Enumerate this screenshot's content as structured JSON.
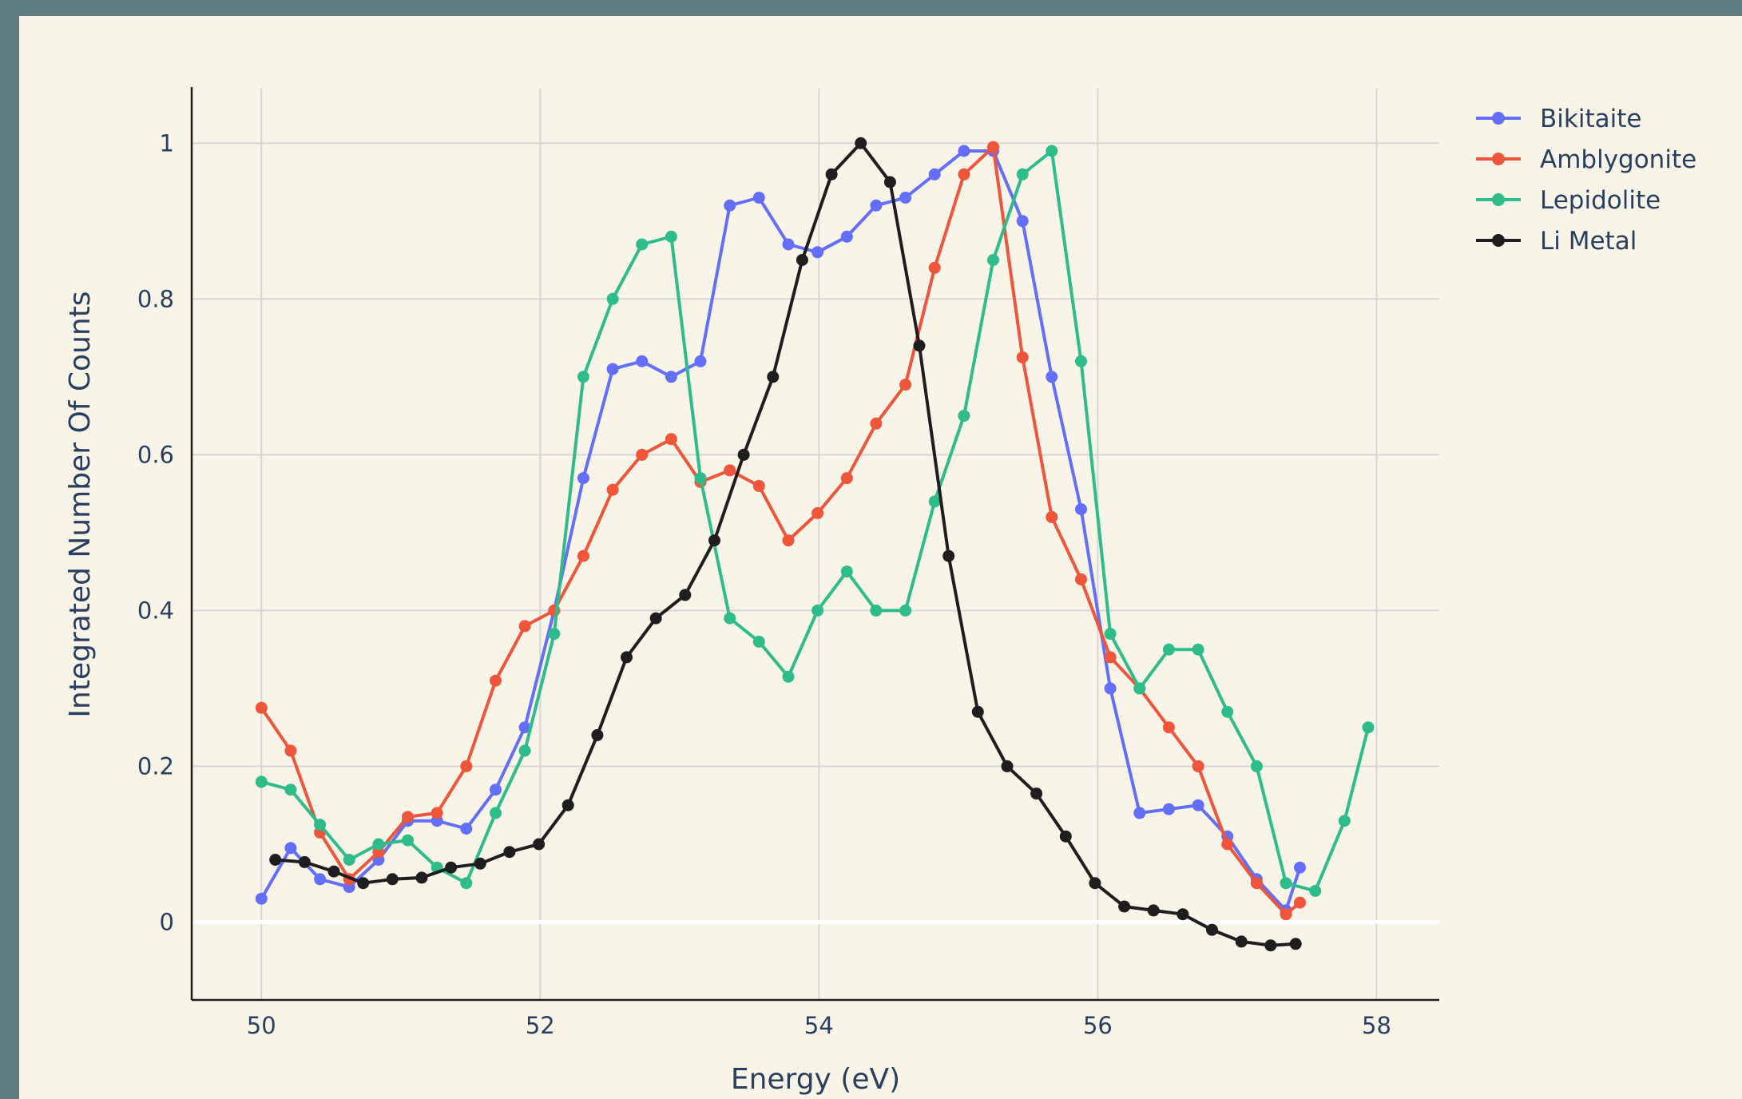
{
  "chart_data": {
    "type": "line",
    "title": "",
    "xlabel": "Energy (eV)",
    "ylabel": "Integrated Number Of Counts",
    "xlim": [
      49.5,
      58.45
    ],
    "ylim": [
      -0.1,
      1.07
    ],
    "x_ticks": [
      50,
      52,
      54,
      56,
      58
    ],
    "x_tick_labels": [
      "50",
      "52",
      "54",
      "56",
      "58"
    ],
    "y_ticks": [
      0,
      0.2,
      0.4,
      0.6,
      0.8,
      1
    ],
    "y_tick_labels": [
      "0",
      "0.2",
      "0.4",
      "0.6",
      "0.8",
      "1"
    ],
    "grid": true,
    "zero_line": true,
    "legend_position": "top-right",
    "series": [
      {
        "name": "Bikitaite",
        "color": "#636efa",
        "x": [
          50.0,
          50.21,
          50.42,
          50.63,
          50.84,
          51.05,
          51.26,
          51.47,
          51.68,
          51.89,
          52.1,
          52.31,
          52.52,
          52.73,
          52.94,
          53.15,
          53.36,
          53.57,
          53.78,
          53.99,
          54.2,
          54.41,
          54.62,
          54.83,
          55.04,
          55.25,
          55.46,
          55.67,
          55.88,
          56.09,
          56.3,
          56.51,
          56.72,
          56.93,
          57.14,
          57.35,
          57.45
        ],
        "y": [
          0.03,
          0.095,
          0.055,
          0.045,
          0.08,
          0.13,
          0.13,
          0.12,
          0.17,
          0.25,
          0.4,
          0.57,
          0.71,
          0.72,
          0.7,
          0.72,
          0.92,
          0.93,
          0.87,
          0.86,
          0.88,
          0.92,
          0.93,
          0.96,
          0.99,
          0.99,
          0.9,
          0.7,
          0.53,
          0.3,
          0.14,
          0.145,
          0.15,
          0.11,
          0.055,
          0.015,
          0.07
        ]
      },
      {
        "name": "Amblygonite",
        "color": "#ef553b",
        "x": [
          50.0,
          50.21,
          50.42,
          50.63,
          50.84,
          51.05,
          51.26,
          51.47,
          51.68,
          51.89,
          52.1,
          52.31,
          52.52,
          52.73,
          52.94,
          53.15,
          53.36,
          53.57,
          53.78,
          53.99,
          54.2,
          54.41,
          54.62,
          54.83,
          55.04,
          55.25,
          55.46,
          55.67,
          55.88,
          56.09,
          56.3,
          56.51,
          56.72,
          56.93,
          57.14,
          57.35,
          57.45
        ],
        "y": [
          0.275,
          0.22,
          0.115,
          0.055,
          0.09,
          0.135,
          0.14,
          0.2,
          0.31,
          0.38,
          0.4,
          0.47,
          0.555,
          0.6,
          0.62,
          0.565,
          0.58,
          0.56,
          0.49,
          0.525,
          0.57,
          0.64,
          0.69,
          0.84,
          0.96,
          0.995,
          0.725,
          0.52,
          0.44,
          0.34,
          0.3,
          0.25,
          0.2,
          0.1,
          0.05,
          0.01,
          0.025
        ]
      },
      {
        "name": "Lepidolite",
        "color": "#2ebd8a",
        "x": [
          50.0,
          50.21,
          50.42,
          50.63,
          50.84,
          51.05,
          51.26,
          51.47,
          51.68,
          51.89,
          52.1,
          52.31,
          52.52,
          52.73,
          52.94,
          53.15,
          53.36,
          53.57,
          53.78,
          53.99,
          54.2,
          54.41,
          54.62,
          54.83,
          55.04,
          55.25,
          55.46,
          55.67,
          55.88,
          56.09,
          56.3,
          56.51,
          56.72,
          56.93,
          57.14,
          57.35,
          57.56,
          57.77,
          57.94
        ],
        "y": [
          0.18,
          0.17,
          0.125,
          0.08,
          0.1,
          0.105,
          0.07,
          0.05,
          0.14,
          0.22,
          0.37,
          0.7,
          0.8,
          0.87,
          0.88,
          0.57,
          0.39,
          0.36,
          0.315,
          0.4,
          0.45,
          0.4,
          0.4,
          0.54,
          0.65,
          0.85,
          0.96,
          0.99,
          0.72,
          0.37,
          0.3,
          0.35,
          0.35,
          0.27,
          0.2,
          0.05,
          0.04,
          0.13,
          0.25
        ]
      },
      {
        "name": "Li Metal",
        "color": "#1e1e1e",
        "x": [
          50.1,
          50.31,
          50.52,
          50.73,
          50.94,
          51.15,
          51.36,
          51.57,
          51.78,
          51.99,
          52.2,
          52.41,
          52.62,
          52.83,
          53.04,
          53.25,
          53.46,
          53.67,
          53.88,
          54.09,
          54.3,
          54.51,
          54.72,
          54.93,
          55.14,
          55.35,
          55.56,
          55.77,
          55.98,
          56.19,
          56.4,
          56.61,
          56.82,
          57.03,
          57.24,
          57.42
        ],
        "y": [
          0.08,
          0.077,
          0.065,
          0.05,
          0.055,
          0.057,
          0.07,
          0.075,
          0.09,
          0.1,
          0.15,
          0.24,
          0.34,
          0.39,
          0.42,
          0.49,
          0.6,
          0.7,
          0.85,
          0.96,
          1.0,
          0.95,
          0.74,
          0.47,
          0.27,
          0.2,
          0.165,
          0.11,
          0.05,
          0.02,
          0.015,
          0.01,
          -0.01,
          -0.025,
          -0.03,
          -0.028
        ]
      }
    ]
  }
}
